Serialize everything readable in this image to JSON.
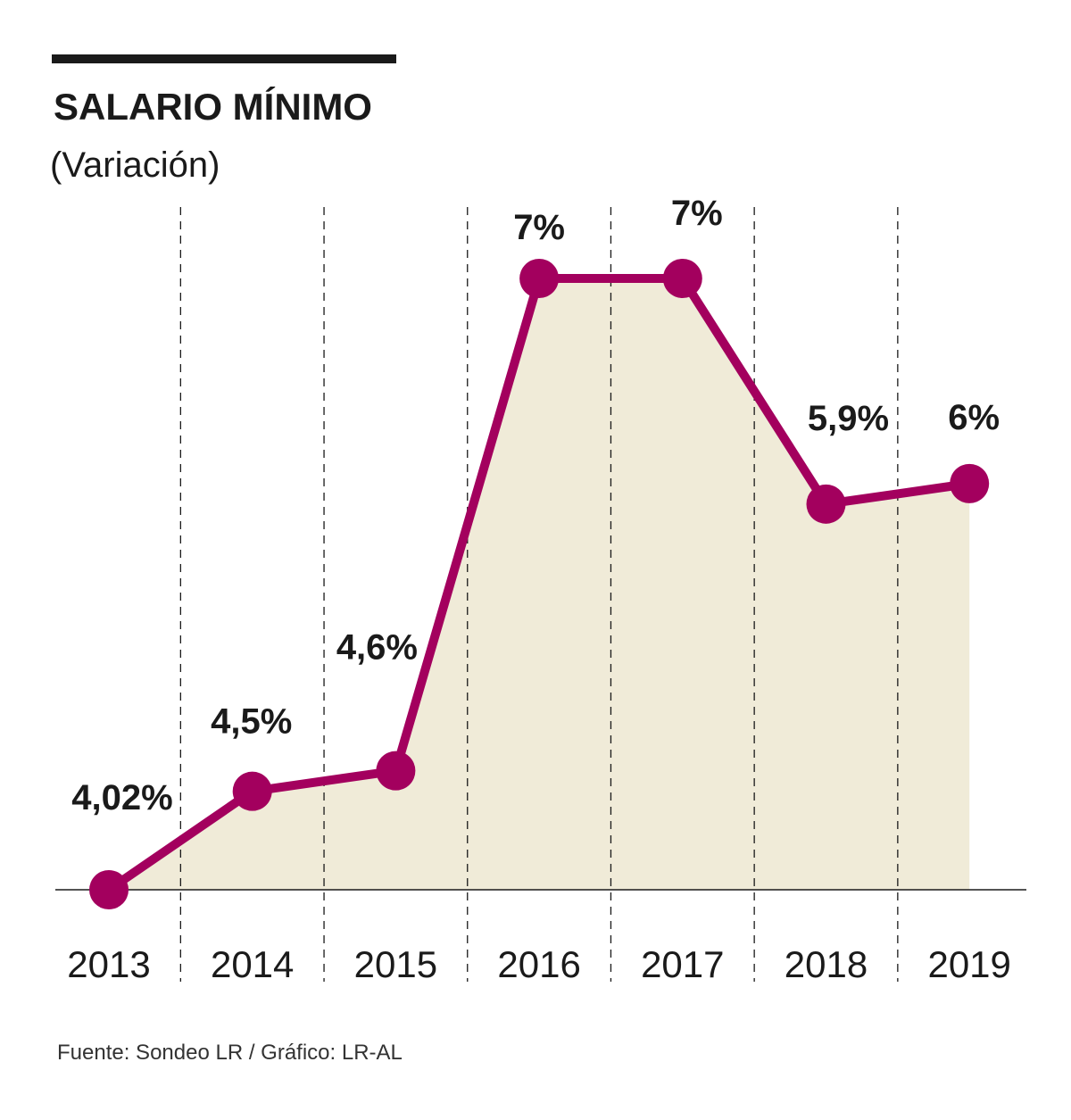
{
  "chart_data": {
    "type": "area",
    "title": "SALARIO MÍNIMO",
    "subtitle": "(Variación)",
    "categories": [
      "2013",
      "2014",
      "2015",
      "2016",
      "2017",
      "2018",
      "2019"
    ],
    "values": [
      4.02,
      4.5,
      4.6,
      7.0,
      7.0,
      5.9,
      6.0
    ],
    "labels": [
      "4,02%",
      "4,5%",
      "4,6%",
      "7%",
      "7%",
      "5,9%",
      "6%"
    ],
    "xlabel": "",
    "ylabel": "",
    "ylim": [
      4.02,
      7.0
    ],
    "grid": "vertical dashed separators",
    "colors": {
      "line": "#a3005e",
      "fill": "#f0ebd8",
      "text": "#1a1a1a"
    }
  },
  "source": "Fuente: Sondeo LR / Gráfico: LR-AL"
}
